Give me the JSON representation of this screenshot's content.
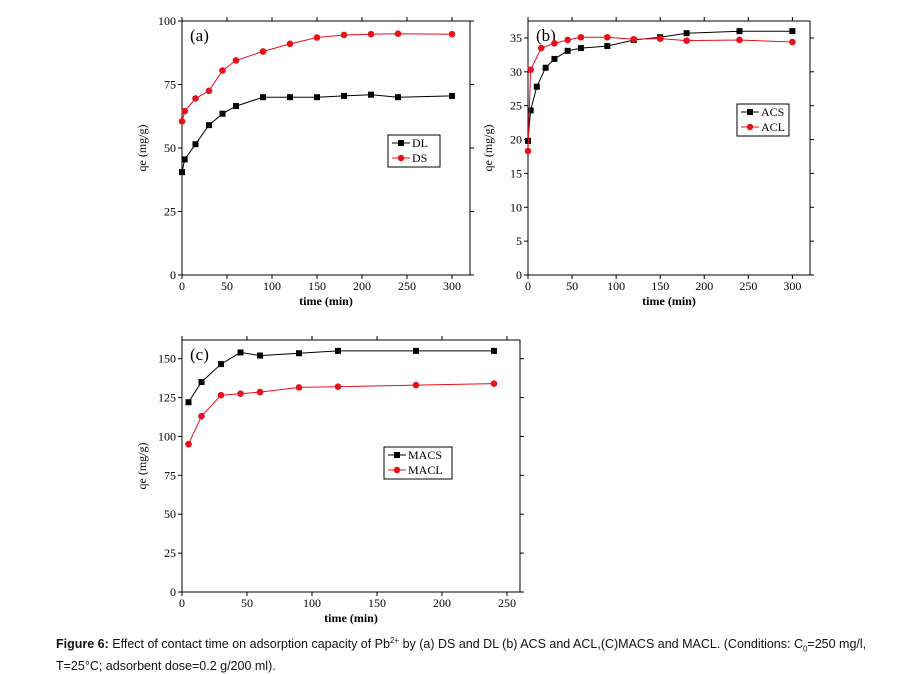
{
  "chart_data": [
    {
      "type": "line",
      "panel_label": "(a)",
      "xlabel": "time (min)",
      "ylabel": "qe (mg/g)",
      "xlim": [
        0,
        320
      ],
      "ylim": [
        0,
        100
      ],
      "xticks": [
        0,
        50,
        100,
        150,
        200,
        250,
        300
      ],
      "yticks": [
        0,
        25,
        50,
        75,
        100
      ],
      "legend": "center-right",
      "series": [
        {
          "name": "DL",
          "color": "#000000",
          "marker": "square",
          "x": [
            0,
            3,
            15,
            30,
            45,
            60,
            90,
            120,
            150,
            180,
            210,
            240,
            300
          ],
          "y": [
            40.5,
            45.5,
            51.5,
            59,
            63.5,
            66.5,
            70,
            70,
            70,
            70.5,
            71,
            70,
            70.5
          ]
        },
        {
          "name": "DS",
          "color": "#e8101a",
          "marker": "circle",
          "x": [
            0,
            3,
            15,
            30,
            45,
            60,
            90,
            120,
            150,
            180,
            210,
            240,
            300
          ],
          "y": [
            60.5,
            64.5,
            69.5,
            72.5,
            80.5,
            84.5,
            88,
            91,
            93.5,
            94.5,
            94.8,
            95,
            94.8
          ]
        }
      ]
    },
    {
      "type": "line",
      "panel_label": "(b)",
      "xlabel": "time (min)",
      "ylabel": "qe (mg/g)",
      "xlim": [
        0,
        320
      ],
      "ylim": [
        0,
        37.5
      ],
      "xticks": [
        0,
        50,
        100,
        150,
        200,
        250,
        300
      ],
      "yticks": [
        0,
        5,
        10,
        15,
        20,
        25,
        30,
        35
      ],
      "legend": "right",
      "series": [
        {
          "name": "ACS",
          "color": "#000000",
          "marker": "square",
          "x": [
            0,
            3,
            10,
            20,
            30,
            45,
            60,
            90,
            120,
            150,
            180,
            240,
            300
          ],
          "y": [
            19.8,
            24.3,
            27.8,
            30.6,
            31.9,
            33.1,
            33.5,
            33.8,
            34.7,
            35.1,
            35.7,
            36,
            36
          ]
        },
        {
          "name": "ACL",
          "color": "#e8101a",
          "marker": "circle",
          "x": [
            0,
            3,
            15,
            30,
            45,
            60,
            90,
            120,
            150,
            180,
            240,
            300
          ],
          "y": [
            18.3,
            30.3,
            33.5,
            34.2,
            34.7,
            35.1,
            35.1,
            34.8,
            34.9,
            34.6,
            34.7,
            34.4
          ]
        }
      ]
    },
    {
      "type": "line",
      "panel_label": "(c)",
      "xlabel": "time (min)",
      "ylabel": "qe (mg/g)",
      "xlim": [
        0,
        260
      ],
      "ylim": [
        0,
        162
      ],
      "xticks": [
        0,
        50,
        100,
        150,
        200,
        250
      ],
      "yticks": [
        0,
        25,
        50,
        75,
        100,
        125,
        150
      ],
      "legend": "center-right",
      "series": [
        {
          "name": "MACS",
          "color": "#000000",
          "marker": "square",
          "x": [
            5,
            15,
            30,
            45,
            60,
            90,
            120,
            180,
            240
          ],
          "y": [
            122,
            135,
            146.5,
            154,
            152,
            153.5,
            155,
            155,
            155
          ]
        },
        {
          "name": "MACL",
          "color": "#e8101a",
          "marker": "circle",
          "x": [
            5,
            15,
            30,
            45,
            60,
            90,
            120,
            180,
            240
          ],
          "y": [
            95,
            113,
            126.5,
            127.5,
            128.5,
            131.5,
            132,
            133,
            134
          ]
        }
      ]
    }
  ],
  "caption": {
    "label": "Figure 6:",
    "text_before_sup": " Effect of contact time on adsorption capacity of Pb",
    "sup": "2+",
    "text_mid": " by (a) DS and DL (b) ACS  and ACL,(C)MACS and MACL. (Conditions: C",
    "sub": "0",
    "text_after": "=250 mg/l, T=25°C; adsorbent dose=0.2 g/200 ml)."
  }
}
